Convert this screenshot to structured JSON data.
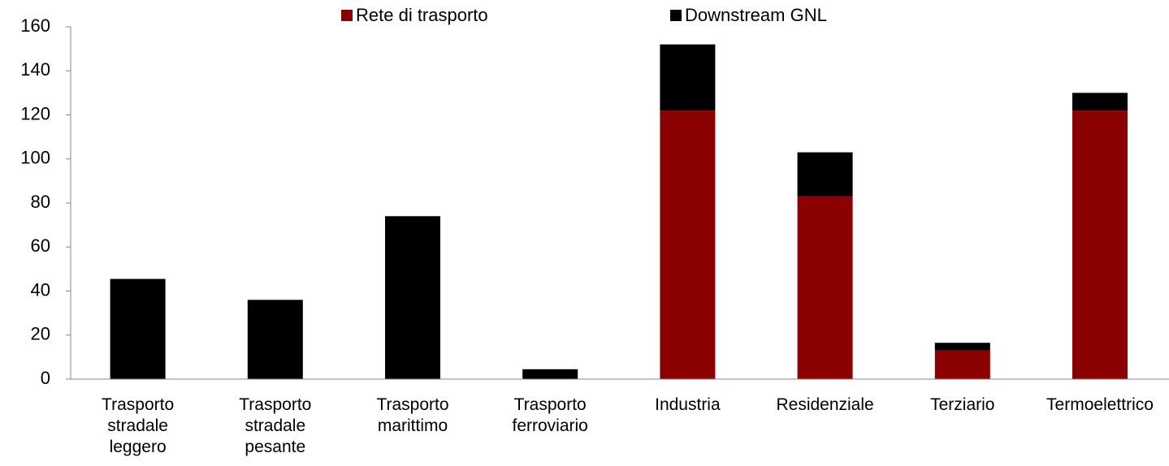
{
  "chart_data": {
    "type": "stacked_bar",
    "categories": [
      "Trasporto stradale leggero",
      "Trasporto stradale pesante",
      "Trasporto marittimo",
      "Trasporto ferroviario",
      "Industria",
      "Residenziale",
      "Terziario",
      "Termoelettrico"
    ],
    "series": [
      {
        "name": "Rete di trasporto",
        "color": "#8b0000",
        "values": [
          0,
          0,
          0,
          0,
          122,
          83,
          13,
          122
        ]
      },
      {
        "name": "Downstream GNL",
        "color": "#000000",
        "values": [
          45.5,
          36,
          74,
          4.5,
          30,
          20,
          3.5,
          8
        ]
      }
    ],
    "ylim": [
      0,
      160
    ],
    "yticks": [
      0,
      20,
      40,
      60,
      80,
      100,
      120,
      140,
      160
    ],
    "legend": "top"
  }
}
